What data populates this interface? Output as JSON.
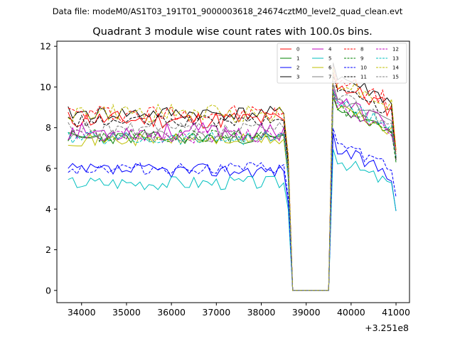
{
  "chart_data": {
    "type": "line",
    "suptitle": "Data file: modeM0/AS1T03_191T01_9000003618_24674cztM0_level2_quad_clean.evt",
    "title": "Quadrant 3 module wise count rates with 100.0s bins.",
    "xlabel": "",
    "ylabel": "",
    "offset_text": "+3.251e8",
    "xlim": [
      33450,
      41300
    ],
    "ylim": [
      -0.6,
      12.25
    ],
    "x_ticks": [
      34000,
      35000,
      36000,
      37000,
      38000,
      39000,
      40000,
      41000
    ],
    "x_tick_labels": [
      "34000",
      "35000",
      "36000",
      "37000",
      "38000",
      "39000",
      "40000",
      "41000"
    ],
    "y_ticks": [
      0,
      2,
      4,
      6,
      8,
      10,
      12
    ],
    "y_tick_labels": [
      "0",
      "2",
      "4",
      "6",
      "8",
      "10",
      "12"
    ],
    "legend_position": "upper right",
    "grid": false,
    "series": [
      {
        "name": "0",
        "color": "#ff0000",
        "dash": "solid",
        "base": 8.4,
        "post": 10.2,
        "amp": 0.45,
        "seed": 11,
        "end": 6.9
      },
      {
        "name": "1",
        "color": "#008000",
        "dash": "solid",
        "base": 7.5,
        "post": 9.0,
        "amp": 0.3,
        "seed": 23,
        "end": 6.6
      },
      {
        "name": "2",
        "color": "#0000ff",
        "dash": "solid",
        "base": 5.9,
        "post": 7.0,
        "amp": 0.35,
        "seed": 37,
        "end": 3.9
      },
      {
        "name": "3",
        "color": "#000000",
        "dash": "solid",
        "base": 8.7,
        "post": 10.6,
        "amp": 0.35,
        "seed": 41,
        "end": 6.4
      },
      {
        "name": "4",
        "color": "#bf00bf",
        "dash": "solid",
        "base": 7.8,
        "post": 9.4,
        "amp": 0.45,
        "seed": 53,
        "end": 6.6
      },
      {
        "name": "5",
        "color": "#00bfbf",
        "dash": "solid",
        "base": 5.3,
        "post": 6.5,
        "amp": 0.35,
        "seed": 67,
        "end": 3.9
      },
      {
        "name": "6",
        "color": "#bfbf00",
        "dash": "solid",
        "base": 7.4,
        "post": 9.1,
        "amp": 0.3,
        "seed": 71,
        "end": 6.8
      },
      {
        "name": "7",
        "color": "#808080",
        "dash": "solid",
        "base": 7.6,
        "post": 9.5,
        "amp": 0.3,
        "seed": 83,
        "end": 6.5
      },
      {
        "name": "8",
        "color": "#ff0000",
        "dash": "dashed",
        "base": 8.7,
        "post": 10.5,
        "amp": 0.45,
        "seed": 97,
        "end": 6.7
      },
      {
        "name": "9",
        "color": "#008000",
        "dash": "dashed",
        "base": 7.6,
        "post": 9.1,
        "amp": 0.35,
        "seed": 101,
        "end": 6.3
      },
      {
        "name": "10",
        "color": "#0000ff",
        "dash": "dashed",
        "base": 6.0,
        "post": 7.3,
        "amp": 0.3,
        "seed": 113,
        "end": 4.6
      },
      {
        "name": "11",
        "color": "#000000",
        "dash": "dashed",
        "base": 8.3,
        "post": 10.0,
        "amp": 0.3,
        "seed": 127,
        "end": 6.5
      },
      {
        "name": "12",
        "color": "#bf00bf",
        "dash": "dashed",
        "base": 7.6,
        "post": 9.2,
        "amp": 0.35,
        "seed": 131,
        "end": 6.9
      },
      {
        "name": "13",
        "color": "#00bfbf",
        "dash": "dashed",
        "base": 7.5,
        "post": 9.3,
        "amp": 0.35,
        "seed": 139,
        "end": 6.6
      },
      {
        "name": "14",
        "color": "#bfbf00",
        "dash": "dashed",
        "base": 8.7,
        "post": 10.4,
        "amp": 0.45,
        "seed": 149,
        "end": 6.9
      },
      {
        "name": "15",
        "color": "#808080",
        "dash": "dashed",
        "base": 7.9,
        "post": 9.6,
        "amp": 0.4,
        "seed": 157,
        "end": 6.6
      }
    ],
    "x_range": {
      "start": 33700,
      "drop_start": 38600,
      "zero_start": 38700,
      "zero_end": 39550,
      "rise_end": 39650,
      "end": 41000,
      "step": 100
    }
  }
}
